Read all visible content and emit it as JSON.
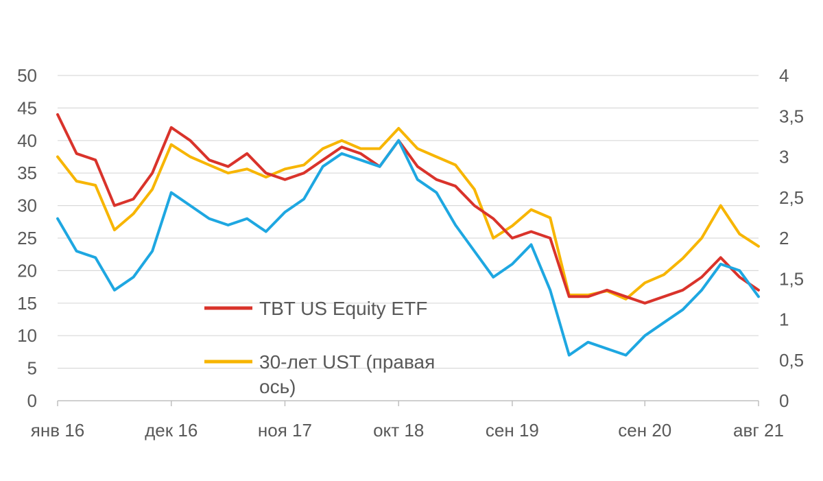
{
  "chart_data": {
    "type": "line",
    "title": "",
    "x_tick_labels": [
      "янв 16",
      "дек 16",
      "ноя 17",
      "окт 18",
      "сен 19",
      "сен 20",
      "авг 21"
    ],
    "y_left": {
      "ticks": [
        "0",
        "5",
        "10",
        "15",
        "20",
        "25",
        "30",
        "35",
        "40",
        "45",
        "50"
      ],
      "range": [
        0,
        50
      ]
    },
    "y_right": {
      "ticks": [
        "0",
        "0,5",
        "1",
        "1,5",
        "2",
        "2,5",
        "3",
        "3,5",
        "4"
      ],
      "range": [
        0,
        4
      ]
    },
    "grid": true,
    "legend_position": "inside-lower-center",
    "x": [
      "янв 16",
      "мар 16",
      "май 16",
      "июл 16",
      "сен 16",
      "ноя 16",
      "дек 16",
      "фев 17",
      "апр 17",
      "июн 17",
      "авг 17",
      "окт 17",
      "ноя 17",
      "янв 18",
      "мар 18",
      "май 18",
      "июл 18",
      "сен 18",
      "окт 18",
      "дек 18",
      "фев 19",
      "апр 19",
      "июн 19",
      "авг 19",
      "сен 19",
      "ноя 19",
      "янв 20",
      "мар 20",
      "май 20",
      "июл 20",
      "авг 20",
      "сен 20",
      "ноя 20",
      "янв 21",
      "мар 21",
      "май 21",
      "июл 21",
      "авг 21"
    ],
    "series": [
      {
        "name": "TBT US Equity ETF",
        "axis": "left",
        "color": "#d9332b",
        "values": [
          44,
          38,
          37,
          30,
          31,
          35,
          42,
          40,
          37,
          36,
          38,
          35,
          34,
          35,
          37,
          39,
          38,
          36,
          40,
          36,
          34,
          33,
          30,
          28,
          25,
          26,
          25,
          16,
          16,
          17,
          16,
          15,
          16,
          17,
          19,
          22,
          19,
          17
        ]
      },
      {
        "name": "30-лет UST (правая ось)",
        "axis": "right",
        "color": "#f7b500",
        "values": [
          3.0,
          2.7,
          2.65,
          2.1,
          2.3,
          2.6,
          3.15,
          3.0,
          2.9,
          2.8,
          2.85,
          2.75,
          2.85,
          2.9,
          3.1,
          3.2,
          3.1,
          3.1,
          3.35,
          3.1,
          3.0,
          2.9,
          2.6,
          2.0,
          2.15,
          2.35,
          2.25,
          1.3,
          1.3,
          1.35,
          1.25,
          1.45,
          1.55,
          1.75,
          2.0,
          2.4,
          2.05,
          1.9
        ]
      },
      {
        "name": "",
        "axis": "left",
        "color": "#1ea7e1",
        "values": [
          28,
          23,
          22,
          17,
          19,
          23,
          32,
          30,
          28,
          27,
          28,
          26,
          29,
          31,
          36,
          38,
          37,
          36,
          40,
          34,
          32,
          27,
          23,
          19,
          21,
          24,
          17,
          7,
          9,
          8,
          7,
          10,
          12,
          14,
          17,
          21,
          20,
          16
        ]
      }
    ]
  }
}
